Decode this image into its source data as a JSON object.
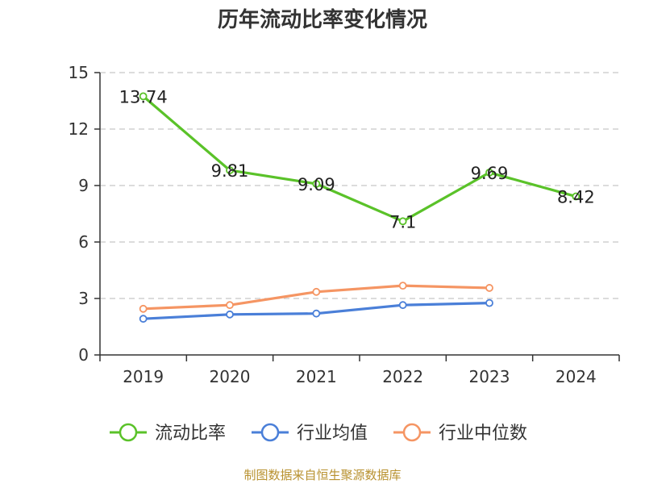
{
  "chart_data": {
    "type": "line",
    "title": "历年流动比率变化情况",
    "categories": [
      "2019",
      "2020",
      "2021",
      "2022",
      "2023",
      "2024"
    ],
    "ylim": [
      0,
      15
    ],
    "yticks": [
      0,
      3,
      6,
      9,
      12,
      15
    ],
    "ytick_labels": [
      "0",
      "3",
      "6",
      "9",
      "12",
      "15"
    ],
    "grid": true,
    "legend_position": "bottom",
    "series": [
      {
        "name": "流动比率",
        "color": "#5ac229",
        "values": [
          13.74,
          9.81,
          9.09,
          7.1,
          9.69,
          8.42
        ],
        "labels": [
          "13.74",
          "9.81",
          "9.09",
          "7.1",
          "9.69",
          "8.42"
        ]
      },
      {
        "name": "行业均值",
        "color": "#4a7fd8",
        "values": [
          1.92,
          2.15,
          2.2,
          2.65,
          2.76,
          null
        ]
      },
      {
        "name": "行业中位数",
        "color": "#f59563",
        "values": [
          2.45,
          2.65,
          3.35,
          3.68,
          3.56,
          null
        ]
      }
    ]
  },
  "footer": {
    "source": "制图数据来自恒生聚源数据库"
  }
}
